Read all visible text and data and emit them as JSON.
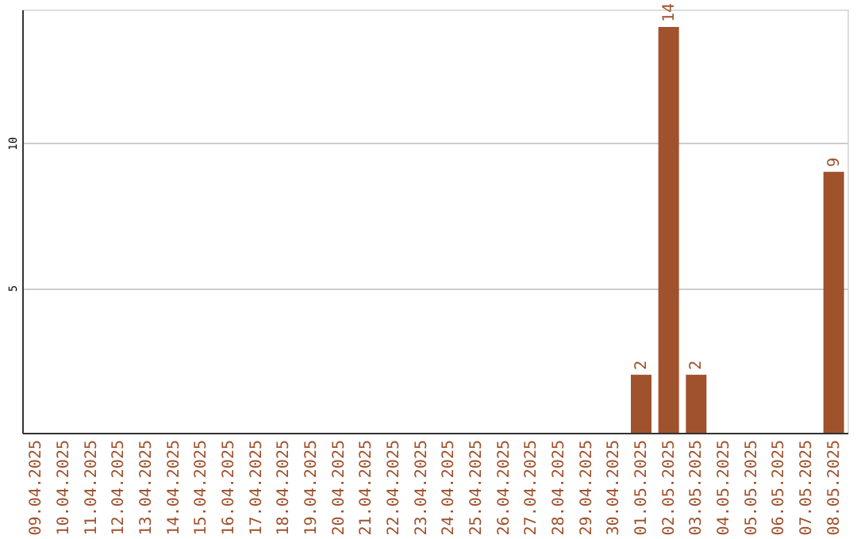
{
  "chart_data": {
    "type": "bar",
    "categories": [
      "09.04.2025",
      "10.04.2025",
      "11.04.2025",
      "12.04.2025",
      "13.04.2025",
      "14.04.2025",
      "15.04.2025",
      "16.04.2025",
      "17.04.2025",
      "18.04.2025",
      "19.04.2025",
      "20.04.2025",
      "21.04.2025",
      "22.04.2025",
      "23.04.2025",
      "24.04.2025",
      "25.04.2025",
      "26.04.2025",
      "27.04.2025",
      "28.04.2025",
      "29.04.2025",
      "30.04.2025",
      "01.05.2025",
      "02.05.2025",
      "03.05.2025",
      "04.05.2025",
      "05.05.2025",
      "06.05.2025",
      "07.05.2025",
      "08.05.2025"
    ],
    "values": [
      0,
      0,
      0,
      0,
      0,
      0,
      0,
      0,
      0,
      0,
      0,
      0,
      0,
      0,
      0,
      0,
      0,
      0,
      0,
      0,
      0,
      0,
      2,
      14,
      2,
      0,
      0,
      0,
      0,
      9
    ],
    "value_labels": [
      null,
      null,
      null,
      null,
      null,
      null,
      null,
      null,
      null,
      null,
      null,
      null,
      null,
      null,
      null,
      null,
      null,
      null,
      null,
      null,
      null,
      null,
      "2",
      "14",
      "2",
      null,
      null,
      null,
      null,
      "9"
    ],
    "color": "#a0522d",
    "ylim": [
      0,
      14.6
    ],
    "yticks": [
      5,
      10
    ],
    "grid": "y"
  }
}
